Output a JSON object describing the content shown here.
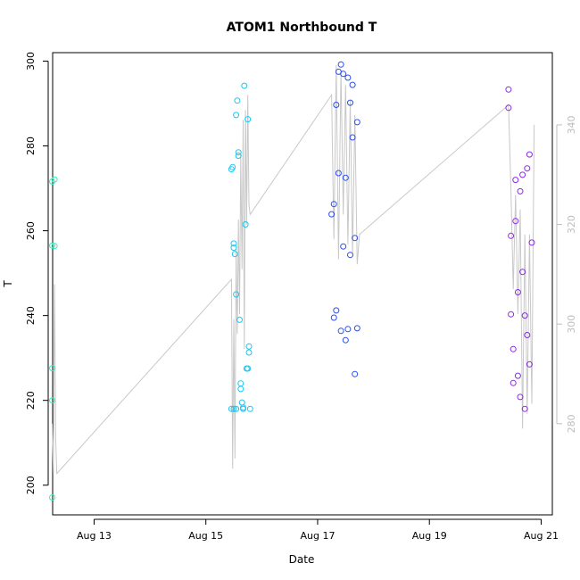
{
  "chart_data": {
    "type": "scatter",
    "title": "ATOM1 Northbound T",
    "xlabel": "Date",
    "ylabel": "T",
    "x_ticks": [
      "Aug 13",
      "Aug 15",
      "Aug 17",
      "Aug 19",
      "Aug 21"
    ],
    "y_ticks": [
      200,
      220,
      240,
      260,
      280,
      300
    ],
    "y_right_ticks": [
      280,
      300,
      320,
      340
    ],
    "ylim": [
      193,
      302
    ],
    "y_right_lim": [
      261.7,
      354.5
    ],
    "xlim": [
      "Aug 12 06:12",
      "Aug 21 04:48"
    ],
    "grid": false,
    "legend": "none",
    "colors": {
      "line": "#c8c8c8",
      "axis": "#000000",
      "right_axis": "#bdbdbd",
      "group_aug12": "#33f0c0",
      "group_aug15": "#1ac6f0",
      "group_aug17": "#2a4ff0",
      "group_aug20": "#8a2be2"
    },
    "series": [
      {
        "color": "#33f0c0",
        "x": [
          "Aug 12 06:00",
          "Aug 12 06:00",
          "Aug 12 06:00",
          "Aug 12 06:00",
          "Aug 12 06:00",
          "Aug 12 07:00",
          "Aug 12 07:00"
        ],
        "y": [
          271.6,
          256.5,
          227.6,
          197.1,
          220.0,
          272.1,
          256.4
        ]
      },
      {
        "color": "#1ac6f0",
        "x": [
          "Aug 15 11:00",
          "Aug 15 11:30",
          "Aug 15 12:00",
          "Aug 15 12:00",
          "Aug 15 12:30",
          "Aug 15 13:00",
          "Aug 15 13:00",
          "Aug 15 13:30",
          "Aug 15 14:00",
          "Aug 15 14:00",
          "Aug 15 14:30",
          "Aug 15 15:00",
          "Aug 15 15:00",
          "Aug 15 15:30",
          "Aug 15 16:00",
          "Aug 15 16:00",
          "Aug 15 16:30",
          "Aug 15 17:00",
          "Aug 15 17:30",
          "Aug 15 18:00",
          "Aug 15 18:00",
          "Aug 15 18:30",
          "Aug 15 18:30",
          "Aug 15 19:00",
          "Aug 15 11:00",
          "Aug 15 12:00",
          "Aug 15 13:00"
        ],
        "y": [
          274.5,
          275.0,
          257.0,
          256.0,
          254.5,
          245.0,
          287.3,
          290.7,
          278.5,
          277.7,
          239.0,
          224.0,
          222.7,
          219.5,
          218.3,
          218.0,
          294.2,
          261.5,
          227.5,
          227.5,
          286.3,
          232.7,
          231.3,
          218.0,
          218.0,
          218.0,
          218.0
        ]
      },
      {
        "color": "#2a4ff0",
        "x": [
          "Aug 17 06:00",
          "Aug 17 07:00",
          "Aug 17 07:00",
          "Aug 17 08:00",
          "Aug 17 08:00",
          "Aug 17 09:00",
          "Aug 17 09:00",
          "Aug 17 10:00",
          "Aug 17 10:00",
          "Aug 17 11:00",
          "Aug 17 11:00",
          "Aug 17 12:00",
          "Aug 17 12:00",
          "Aug 17 13:00",
          "Aug 17 13:00",
          "Aug 17 14:00",
          "Aug 17 14:00",
          "Aug 17 15:00",
          "Aug 17 15:00",
          "Aug 17 16:00",
          "Aug 17 16:00",
          "Aug 17 17:00",
          "Aug 17 17:00"
        ],
        "y": [
          263.9,
          266.3,
          239.5,
          289.7,
          241.2,
          297.5,
          273.6,
          299.2,
          236.4,
          297.0,
          256.3,
          234.2,
          272.5,
          296.1,
          236.8,
          290.2,
          254.3,
          294.4,
          282.0,
          226.2,
          258.3,
          285.6,
          237.0
        ]
      },
      {
        "color": "#8a2be2",
        "x": [
          "Aug 20 10:00",
          "Aug 20 10:00",
          "Aug 20 11:00",
          "Aug 20 11:00",
          "Aug 20 12:00",
          "Aug 20 12:00",
          "Aug 20 13:00",
          "Aug 20 13:00",
          "Aug 20 14:00",
          "Aug 20 14:00",
          "Aug 20 15:00",
          "Aug 20 15:00",
          "Aug 20 16:00",
          "Aug 20 16:00",
          "Aug 20 17:00",
          "Aug 20 17:00",
          "Aug 20 18:00",
          "Aug 20 18:00",
          "Aug 20 19:00",
          "Aug 20 19:00",
          "Aug 20 20:00"
        ],
        "y": [
          293.3,
          289.0,
          258.8,
          240.3,
          232.1,
          224.1,
          262.3,
          272.0,
          245.5,
          225.8,
          220.8,
          269.3,
          273.2,
          250.3,
          240.0,
          218.0,
          235.4,
          274.7,
          278.0,
          228.5,
          257.2
        ]
      }
    ],
    "line_series": {
      "axis": "right",
      "x": [
        "Aug 12 06:00",
        "Aug 12 06:30",
        "Aug 12 07:00",
        "Aug 12 07:30",
        "Aug 12 08:00",
        "Aug 15 11:00",
        "Aug 15 11:30",
        "Aug 15 12:00",
        "Aug 15 12:30",
        "Aug 15 13:00",
        "Aug 15 13:30",
        "Aug 15 14:00",
        "Aug 15 14:30",
        "Aug 15 15:00",
        "Aug 15 15:30",
        "Aug 15 16:00",
        "Aug 15 16:30",
        "Aug 15 17:00",
        "Aug 15 17:30",
        "Aug 15 18:00",
        "Aug 15 18:30",
        "Aug 15 19:00",
        "Aug 17 06:00",
        "Aug 17 07:00",
        "Aug 17 08:00",
        "Aug 17 09:00",
        "Aug 17 10:00",
        "Aug 17 11:00",
        "Aug 17 12:00",
        "Aug 17 13:00",
        "Aug 17 14:00",
        "Aug 17 15:00",
        "Aug 17 16:00",
        "Aug 17 17:00",
        "Aug 17 18:00",
        "Aug 20 10:00",
        "Aug 20 11:00",
        "Aug 20 12:00",
        "Aug 20 13:00",
        "Aug 20 14:00",
        "Aug 20 15:00",
        "Aug 20 16:00",
        "Aug 20 17:00",
        "Aug 20 18:00",
        "Aug 20 19:00",
        "Aug 20 20:00",
        "Aug 20 21:00"
      ],
      "y": [
        280.0,
        270.0,
        308.0,
        277.0,
        270.0,
        309.0,
        271.0,
        301.0,
        273.0,
        315.0,
        298.0,
        321.0,
        302.0,
        334.0,
        311.0,
        341.0,
        295.0,
        343.0,
        320.0,
        346.0,
        324.0,
        322.0,
        346.0,
        317.0,
        352.0,
        313.0,
        351.0,
        322.0,
        348.0,
        316.0,
        345.0,
        314.0,
        342.0,
        312.0,
        318.0,
        344.0,
        327.0,
        307.0,
        326.0,
        302.0,
        323.0,
        279.0,
        318.0,
        282.0,
        318.0,
        284.0,
        340.0
      ]
    }
  }
}
